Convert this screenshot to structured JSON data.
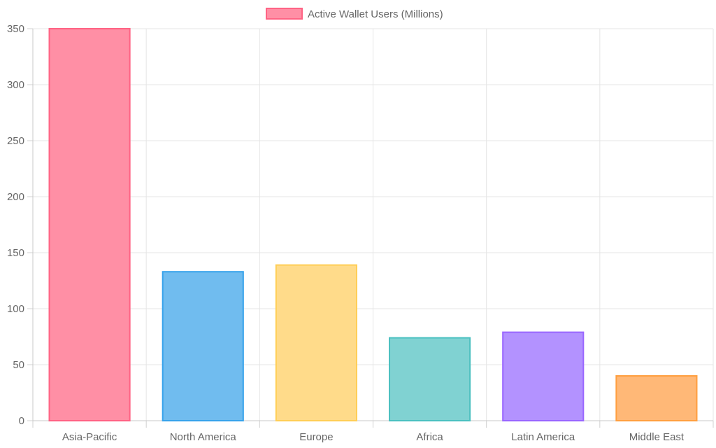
{
  "chart_data": {
    "type": "bar",
    "categories": [
      "Asia-Pacific",
      "North America",
      "Europe",
      "Africa",
      "Latin America",
      "Middle East"
    ],
    "series": [
      {
        "name": "Active Wallet Users (Millions)",
        "values": [
          350,
          133,
          139,
          74,
          79,
          40
        ]
      }
    ],
    "bar_colors": [
      {
        "fill": "#ff8fa5",
        "stroke": "#ff6384"
      },
      {
        "fill": "#70bcef",
        "stroke": "#36a2eb"
      },
      {
        "fill": "#ffdb8a",
        "stroke": "#ffce56"
      },
      {
        "fill": "#80d2d2",
        "stroke": "#4bc0c0"
      },
      {
        "fill": "#b392ff",
        "stroke": "#9966ff"
      },
      {
        "fill": "#ffb877",
        "stroke": "#ff9f40"
      }
    ],
    "legend_swatch": {
      "fill": "#ff8fa5",
      "stroke": "#ff6384"
    },
    "ylim": [
      0,
      350
    ],
    "yticks": [
      "0",
      "50",
      "100",
      "150",
      "200",
      "250",
      "300",
      "350"
    ],
    "grid": true,
    "legend_position": "top-center",
    "xlabel": "",
    "ylabel": "",
    "title": ""
  }
}
